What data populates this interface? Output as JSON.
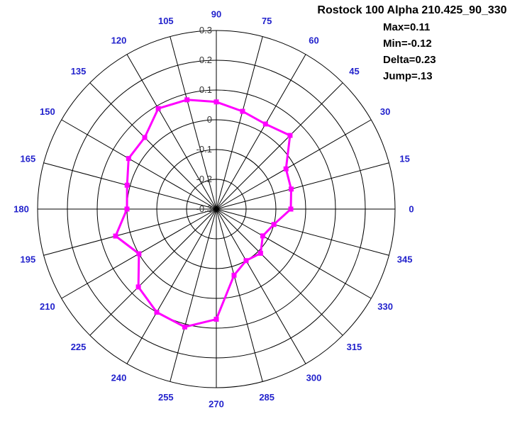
{
  "header": {
    "title": "Rostock 100 Alpha 210.425_90_330",
    "stats": [
      "Max=0.11",
      "Min=-0.12",
      "Delta=0.23",
      "Jump=.13"
    ]
  },
  "chart_data": {
    "type": "radar",
    "title": "Rostock 100 Alpha 210.425_90_330",
    "annotations": [
      "Max=0.11",
      "Min=-0.12",
      "Delta=0.23",
      "Jump=.13"
    ],
    "angles_deg": [
      0,
      15,
      30,
      45,
      60,
      75,
      90,
      105,
      120,
      135,
      150,
      165,
      180,
      195,
      210,
      225,
      240,
      255,
      270,
      285,
      300,
      315,
      330,
      345
    ],
    "values": [
      -0.05,
      -0.04,
      -0.03,
      0.05,
      0.03,
      0.04,
      0.06,
      0.08,
      0.09,
      0.04,
      0.04,
      0.01,
      0.0,
      0.05,
      0.0,
      0.07,
      0.1,
      0.11,
      0.07,
      -0.07,
      -0.1,
      -0.09,
      -0.12,
      -0.1
    ],
    "radial_axis": {
      "min": -0.3,
      "max": 0.3,
      "tick_step": 0.1,
      "tick_labels_outer_to_center": [
        "0.3",
        "0.2",
        "0.1",
        "0",
        "-0.1",
        "-0.2",
        "-0.3"
      ]
    },
    "grid": {
      "rings": 6,
      "spokes_every_deg": 15,
      "visible": true
    },
    "legend": {
      "visible": false
    },
    "stats": {
      "max": 0.11,
      "min": -0.12,
      "delta": 0.23,
      "jump": 0.13
    },
    "colors": {
      "line": "#FF00FF",
      "marker": "#FF00FF",
      "grid": "#000000",
      "angle_label": "#2222CC",
      "radial_label": "#333333",
      "title_text": "#000000"
    }
  }
}
